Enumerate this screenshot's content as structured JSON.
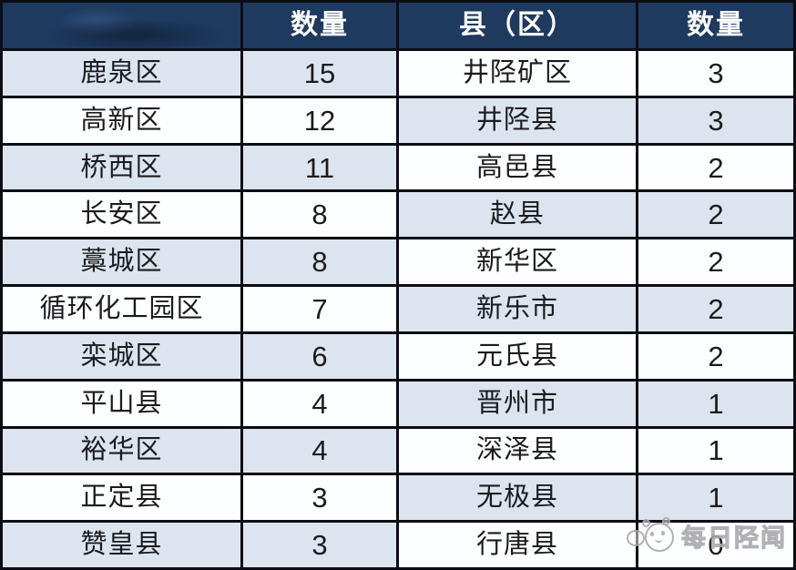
{
  "chart_data": {
    "type": "table",
    "title": "",
    "columns": [
      "",
      "数量",
      "县（区）",
      "数量"
    ],
    "rows": [
      [
        "鹿泉区",
        "15",
        "井陉矿区",
        "3"
      ],
      [
        "高新区",
        "12",
        "井陉县",
        "3"
      ],
      [
        "桥西区",
        "11",
        "高邑县",
        "2"
      ],
      [
        "长安区",
        "8",
        "赵县",
        "2"
      ],
      [
        "藁城区",
        "8",
        "新华区",
        "2"
      ],
      [
        "循环化工园区",
        "7",
        "新乐市",
        "2"
      ],
      [
        "栾城区",
        "6",
        "元氏县",
        "2"
      ],
      [
        "平山县",
        "4",
        "晋州市",
        "1"
      ],
      [
        "裕华区",
        "4",
        "深泽县",
        "1"
      ],
      [
        "正定县",
        "3",
        "无极县",
        "1"
      ],
      [
        "赞皇县",
        "3",
        "行唐县",
        "0"
      ]
    ]
  },
  "watermark": {
    "text": "每日陉闻",
    "logo": "mascot-face-icon"
  },
  "colors": {
    "header_bg": "#1e3a5f",
    "row_alt_bg": "#dce4ef",
    "row_bg": "#fdfeff",
    "grid_line": "#0c0c15",
    "header_text": "#ffffff",
    "cell_text": "#1b1b1f",
    "watermark_gray": "#a9a9ad"
  }
}
